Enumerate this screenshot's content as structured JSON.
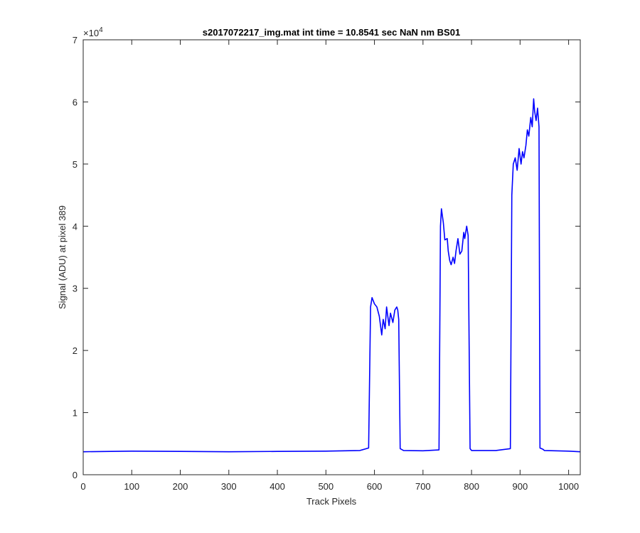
{
  "chart_data": {
    "type": "line",
    "title": "s2017072217_img.mat int time = 10.8541 sec  NaN nm BS01",
    "xlabel": "Track Pixels",
    "ylabel": "Signal (ADU) at pixel 389",
    "xlim": [
      0,
      1024
    ],
    "ylim": [
      0,
      70000
    ],
    "xticks": [
      0,
      100,
      200,
      300,
      400,
      500,
      600,
      700,
      800,
      900,
      1000
    ],
    "yticks": [
      0,
      1,
      2,
      3,
      4,
      5,
      6,
      7
    ],
    "y_exponent_label": "×10",
    "y_exponent_power": "4",
    "y_scale": 10000,
    "grid": false,
    "line_color": "#0000ff",
    "series": [
      {
        "x": [
          0,
          100,
          200,
          300,
          400,
          500,
          570,
          588,
          592,
          595,
          600,
          605,
          610,
          615,
          618,
          622,
          625,
          630,
          633,
          638,
          642,
          646,
          648,
          650,
          653,
          660,
          700,
          733,
          736,
          738,
          742,
          745,
          750,
          752,
          755,
          758,
          762,
          765,
          768,
          772,
          776,
          780,
          784,
          786,
          790,
          793,
          797,
          800,
          850,
          880,
          883,
          886,
          890,
          894,
          898,
          902,
          905,
          908,
          912,
          915,
          918,
          922,
          925,
          928,
          930,
          933,
          936,
          939,
          941,
          944,
          947,
          950,
          1000,
          1024
        ],
        "y": [
          3700,
          3800,
          3750,
          3700,
          3750,
          3800,
          3900,
          4300,
          27000,
          28500,
          27500,
          27000,
          25500,
          22500,
          25000,
          23500,
          27000,
          24000,
          26000,
          24500,
          26500,
          27000,
          26500,
          25000,
          4200,
          3900,
          3850,
          4000,
          40000,
          42800,
          40500,
          37800,
          38000,
          36000,
          34500,
          33800,
          35000,
          34000,
          36000,
          38000,
          35500,
          36000,
          39000,
          38000,
          40000,
          38500,
          4200,
          3900,
          3900,
          4200,
          45000,
          50000,
          51000,
          49000,
          52500,
          50000,
          52000,
          51000,
          53000,
          55500,
          54500,
          57500,
          56000,
          60500,
          58500,
          57000,
          59000,
          56000,
          4300,
          4200,
          4100,
          3900,
          3800,
          3700
        ]
      }
    ]
  }
}
